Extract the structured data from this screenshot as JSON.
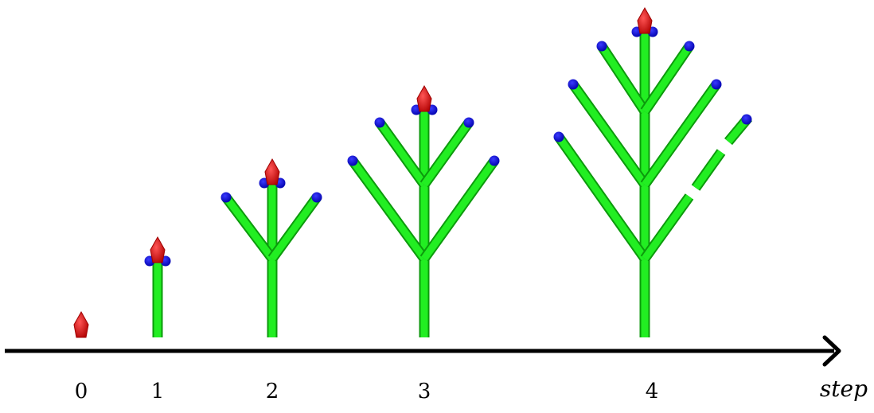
{
  "figure": {
    "axis_label": "step",
    "steps": [
      {
        "label": "0"
      },
      {
        "label": "1"
      },
      {
        "label": "2"
      },
      {
        "label": "3"
      },
      {
        "label": "4"
      }
    ]
  },
  "colors": {
    "branch": "#22ee22",
    "branch_shade": "#0c9a0c",
    "bud_tip": "#ee1111",
    "bud_tip_shade": "#a00000",
    "node": "#1111dd",
    "axis": "#000000"
  }
}
